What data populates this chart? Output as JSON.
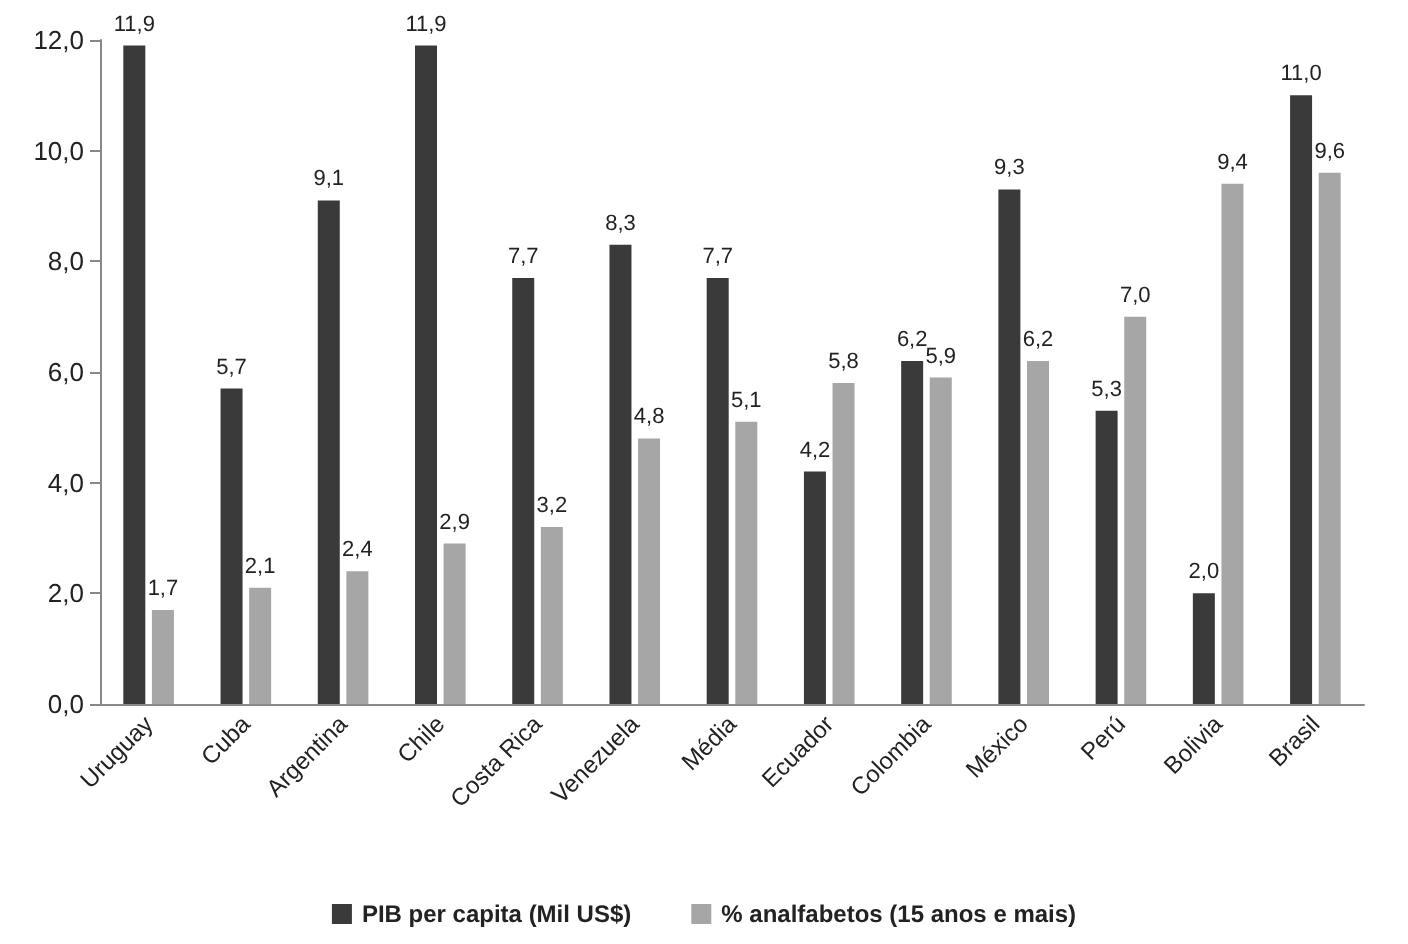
{
  "chart_data": {
    "type": "bar",
    "categories": [
      "Uruguay",
      "Cuba",
      "Argentina",
      "Chile",
      "Costa Rica",
      "Venezuela",
      "Média",
      "Ecuador",
      "Colombia",
      "México",
      "Perú",
      "Bolivia",
      "Brasil"
    ],
    "series": [
      {
        "name": "PIB per capita (Mil US$)",
        "color": "#3a3a3a",
        "values": [
          11.9,
          5.7,
          9.1,
          11.9,
          7.7,
          8.3,
          7.7,
          4.2,
          6.2,
          9.3,
          5.3,
          2.0,
          11.0
        ],
        "value_labels": [
          "11,9",
          "5,7",
          "9,1",
          "11,9",
          "7,7",
          "8,3",
          "7,7",
          "4,2",
          "6,2",
          "9,3",
          "5,3",
          "2,0",
          "11,0"
        ]
      },
      {
        "name": "% analfabetos (15 anos e mais)",
        "color": "#a6a6a6",
        "values": [
          1.7,
          2.1,
          2.4,
          2.9,
          3.2,
          4.8,
          5.1,
          5.8,
          5.9,
          6.2,
          7.0,
          9.4,
          9.6
        ],
        "value_labels": [
          "1,7",
          "2,1",
          "2,4",
          "2,9",
          "3,2",
          "4,8",
          "5,1",
          "5,8",
          "5,9",
          "6,2",
          "7,0",
          "9,4",
          "9,6"
        ]
      }
    ],
    "ylim": [
      0,
      12
    ],
    "yticks": [
      {
        "value": 0,
        "label": "0,0"
      },
      {
        "value": 2,
        "label": "2,0"
      },
      {
        "value": 4,
        "label": "4,0"
      },
      {
        "value": 6,
        "label": "6,0"
      },
      {
        "value": 8,
        "label": "8,0"
      },
      {
        "value": 10,
        "label": "10,0"
      },
      {
        "value": 12,
        "label": "12,0"
      }
    ],
    "grid": false,
    "legend": "bottom"
  }
}
